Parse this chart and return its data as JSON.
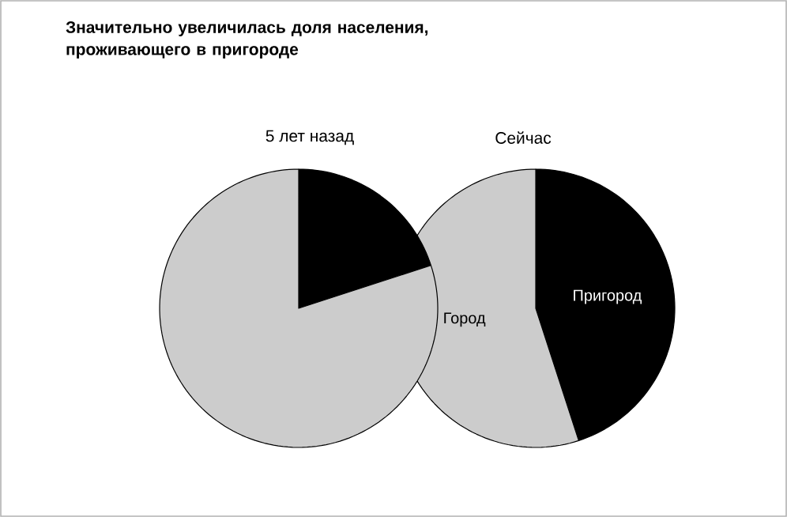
{
  "chart_data": [
    {
      "type": "pie",
      "title": "Значительно увеличилась доля населения, проживающего в пригороде",
      "subtitle": "5 лет назад",
      "categories": [
        null,
        null
      ],
      "values": [
        20,
        80
      ],
      "colors": [
        "#000000",
        "#cccccc"
      ]
    },
    {
      "type": "pie",
      "title": "Сейчас",
      "categories": [
        "Пригород",
        "Город"
      ],
      "values": [
        45,
        55
      ],
      "colors": [
        "#000000",
        "#cccccc"
      ]
    }
  ]
}
